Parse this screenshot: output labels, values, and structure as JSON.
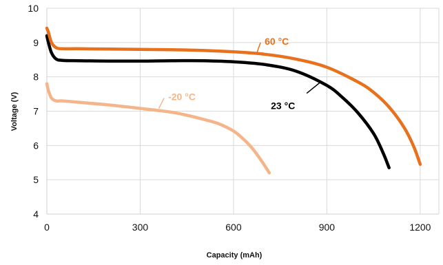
{
  "chart_data": {
    "type": "line",
    "title": "",
    "xlabel": "Capacity (mAh)",
    "ylabel": "Voltage (V)",
    "xlim": [
      0,
      1260
    ],
    "ylim": [
      4,
      10
    ],
    "xticks": [
      0,
      300,
      600,
      900,
      1200
    ],
    "yticks": [
      4,
      5,
      6,
      7,
      8,
      9,
      10
    ],
    "grid": true,
    "legend": "none",
    "series": [
      {
        "name": "60 °C",
        "color": "#e8711e",
        "x": [
          0,
          5,
          15,
          30,
          50,
          100,
          200,
          300,
          400,
          500,
          600,
          700,
          800,
          900,
          1000,
          1050,
          1100,
          1150,
          1180,
          1200
        ],
        "y": [
          9.42,
          9.3,
          9.0,
          8.85,
          8.82,
          8.82,
          8.81,
          8.8,
          8.79,
          8.77,
          8.73,
          8.66,
          8.52,
          8.28,
          7.85,
          7.55,
          7.12,
          6.5,
          5.95,
          5.45
        ]
      },
      {
        "name": "23 °C",
        "color": "#000000",
        "x": [
          0,
          5,
          15,
          30,
          50,
          100,
          200,
          300,
          400,
          500,
          600,
          700,
          800,
          900,
          950,
          1000,
          1050,
          1080,
          1100
        ],
        "y": [
          9.2,
          9.0,
          8.7,
          8.52,
          8.48,
          8.47,
          8.46,
          8.46,
          8.47,
          8.47,
          8.44,
          8.36,
          8.17,
          7.75,
          7.4,
          6.95,
          6.35,
          5.8,
          5.35
        ]
      },
      {
        "name": "-20 °C",
        "color": "#f5b58a",
        "x": [
          0,
          5,
          15,
          30,
          50,
          100,
          200,
          300,
          400,
          450,
          500,
          550,
          600,
          630,
          660,
          690,
          715
        ],
        "y": [
          7.8,
          7.6,
          7.38,
          7.3,
          7.3,
          7.26,
          7.18,
          7.08,
          6.97,
          6.88,
          6.77,
          6.64,
          6.42,
          6.2,
          5.92,
          5.55,
          5.2
        ]
      }
    ],
    "annotations": [
      {
        "text": "60 °C",
        "series": 0,
        "arrow_from": [
          675,
          8.7
        ],
        "label_at": [
          700,
          9.04
        ]
      },
      {
        "text": "23 °C",
        "series": 1,
        "arrow_from": [
          880,
          7.85
        ],
        "label_at": [
          720,
          7.16
        ]
      },
      {
        "text": "-20 °C",
        "series": 2,
        "arrow_from": [
          360,
          7.08
        ],
        "label_at": [
          390,
          7.42
        ]
      }
    ]
  }
}
